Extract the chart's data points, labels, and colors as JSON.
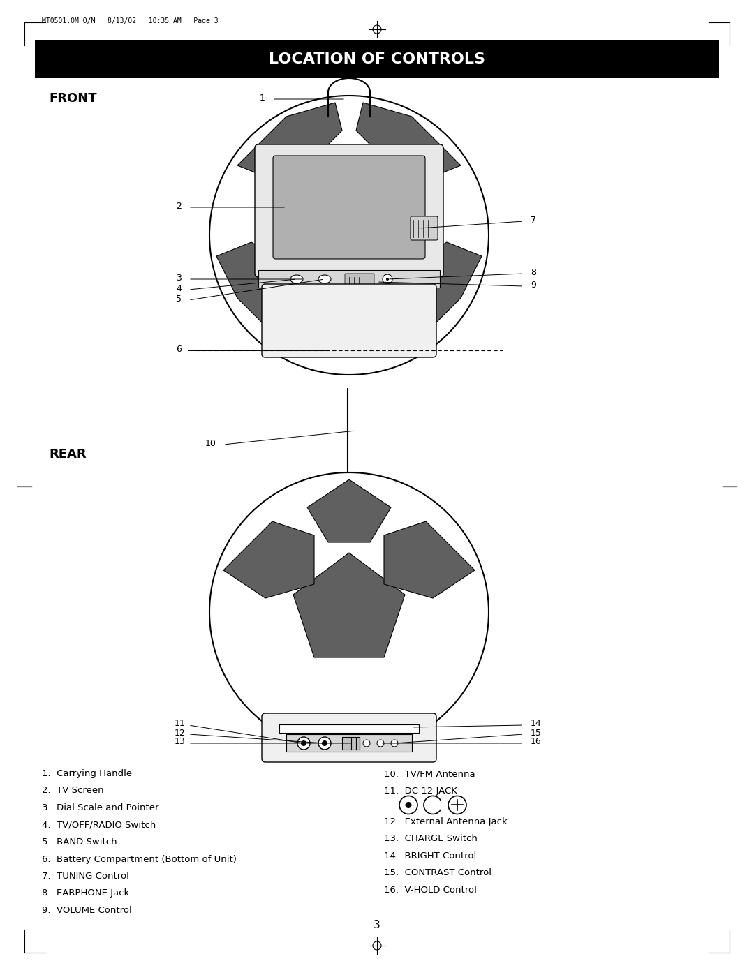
{
  "page_header": "MT0501.OM O/M   8/13/02   10:35 AM   Page 3",
  "title": "LOCATION OF CONTROLS",
  "title_bg": "#000000",
  "title_color": "#ffffff",
  "front_label": "FRONT",
  "rear_label": "REAR",
  "page_number": "3",
  "left_items": [
    "1.  Carrying Handle",
    "2.  TV Screen",
    "3.  Dial Scale and Pointer",
    "4.  TV/OFF/RADIO Switch",
    "5.  BAND Switch",
    "6.  Battery Compartment (Bottom of Unit)",
    "7.  TUNING Control",
    "8.  EARPHONE Jack",
    "9.  VOLUME Control"
  ],
  "right_items": [
    "10.  TV/FM Antenna",
    "11.  DC 12 JACK",
    "",
    "12.  External Antenna Jack",
    "13.  CHARGE Switch",
    "14.  BRIGHT Control",
    "15.  CONTRAST Control",
    "16.  V-HOLD Control"
  ],
  "bg_color": "#ffffff",
  "text_color": "#000000",
  "gray_fill": "#808080",
  "dark_gray": "#555555",
  "light_gray": "#cccccc",
  "screen_gray": "#b0b0b0"
}
